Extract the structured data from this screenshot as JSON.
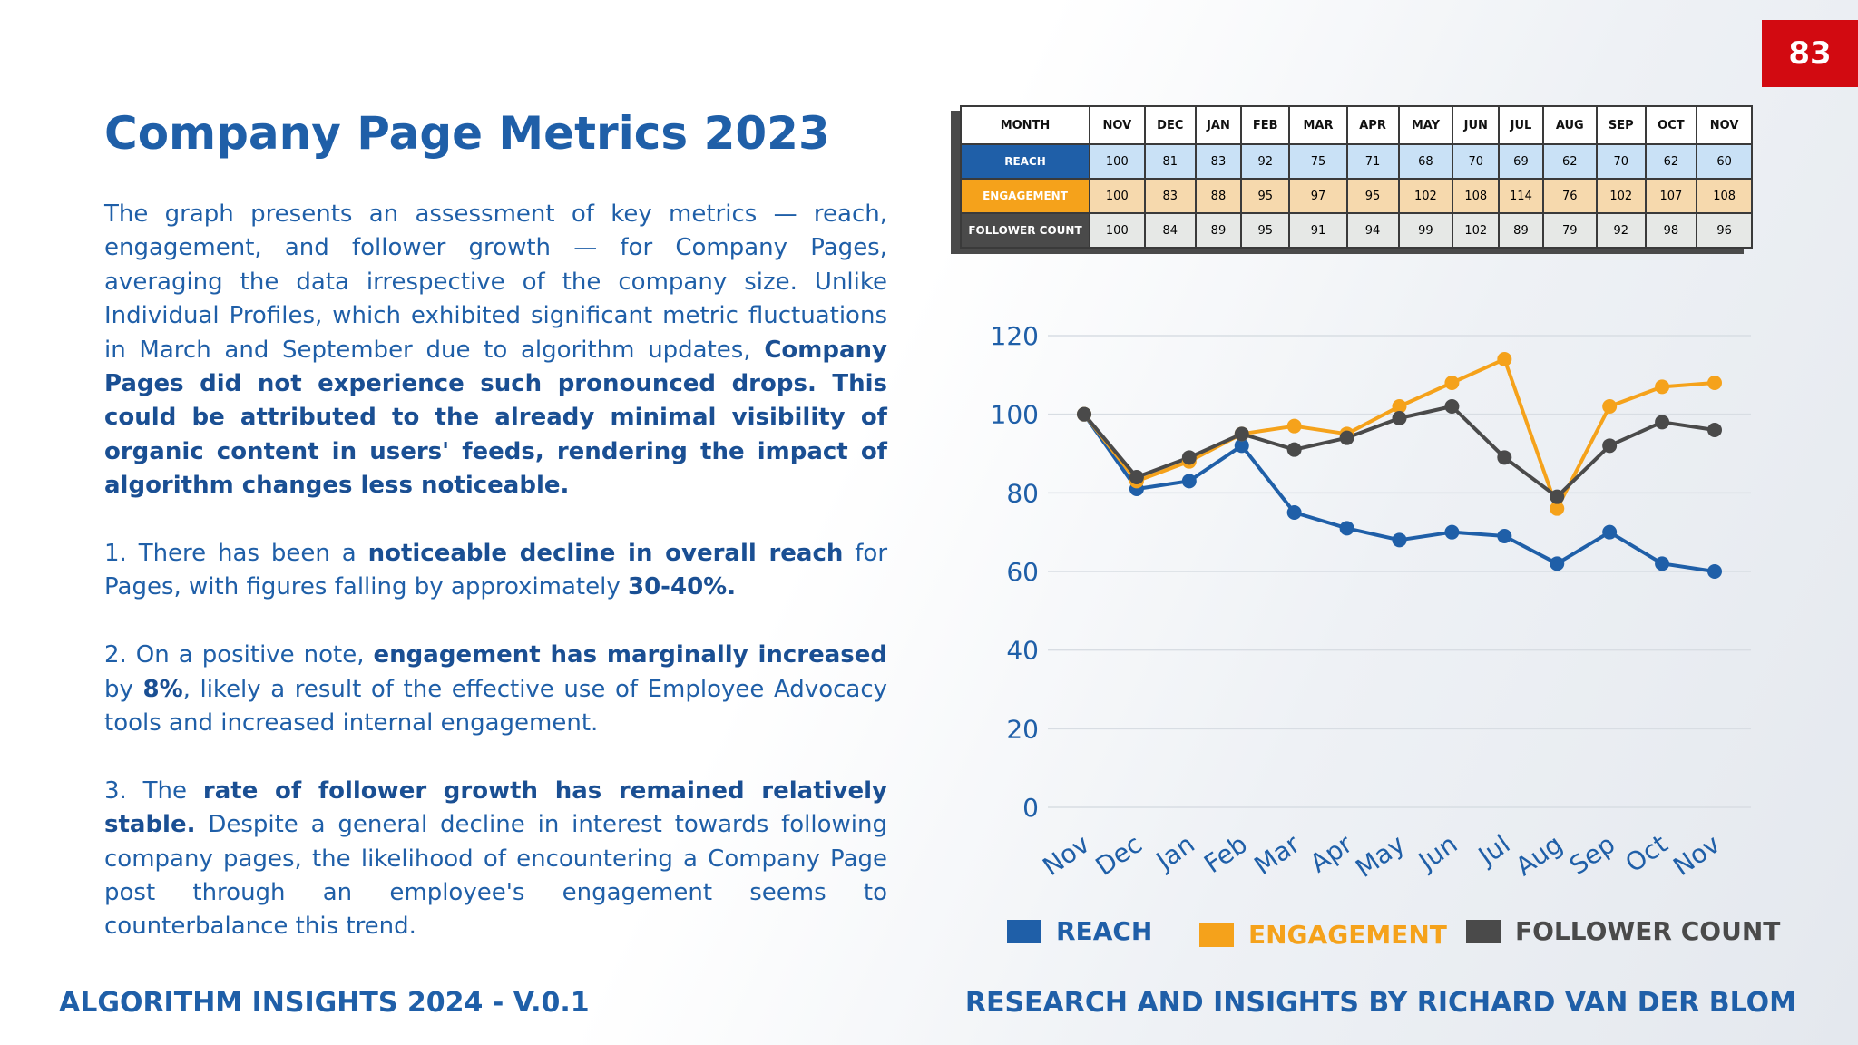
{
  "page_number": "83",
  "title": "Company Page Metrics 2023",
  "paragraphs": [
    [
      {
        "t": "The graph presents an assessment of key metrics — reach, engagement, and follower growth — for Company Pages, averaging the data irrespective of the company size. Unlike Individual Profiles, which exhibited significant metric fluctuations in March and September due to algorithm updates, ",
        "b": false
      },
      {
        "t": "Company Pages did not experience such pronounced drops. This could be attributed to the already minimal visibility of organic content in users' feeds, rendering the impact of algorithm changes less noticeable.",
        "b": true
      }
    ],
    [
      {
        "t": "1. There has been a ",
        "b": false
      },
      {
        "t": "noticeable decline in overall reach",
        "b": true
      },
      {
        "t": " for Pages, with figures falling by approximately ",
        "b": false
      },
      {
        "t": "30-40%.",
        "b": true
      }
    ],
    [
      {
        "t": "2. On a positive note, ",
        "b": false
      },
      {
        "t": "engagement has marginally increased",
        "b": true
      },
      {
        "t": " by ",
        "b": false
      },
      {
        "t": "8%",
        "b": true
      },
      {
        "t": ", likely a result of the effective use of Employee Advocacy tools and increased internal engagement.",
        "b": false
      }
    ],
    [
      {
        "t": "3. The ",
        "b": false
      },
      {
        "t": "rate of follower growth has remained relatively stable.",
        "b": true
      },
      {
        "t": " Despite a general decline in interest towards following company pages, the likelihood of encountering a Company Page post through an employee's engagement seems to counterbalance this trend.",
        "b": false
      }
    ]
  ],
  "footer": {
    "left": "ALGORITHM INSIGHTS 2024 - V.0.1",
    "right": "RESEARCH AND INSIGHTS BY RICHARD VAN DER BLOM"
  },
  "table": {
    "header_label": "MONTH",
    "months": [
      "NOV",
      "DEC",
      "JAN",
      "FEB",
      "MAR",
      "APR",
      "MAY",
      "JUN",
      "JUL",
      "AUG",
      "SEP",
      "OCT",
      "NOV"
    ],
    "rows": [
      {
        "label": "REACH",
        "values": [
          "100",
          "81",
          "83",
          "92",
          "75",
          "71",
          "68",
          "70",
          "69",
          "62",
          "70",
          "62",
          "60"
        ]
      },
      {
        "label": "ENGAGEMENT",
        "values": [
          "100",
          "83",
          "88",
          "95",
          "97",
          "95",
          "102",
          "108",
          "114",
          "76",
          "102",
          "107",
          "108"
        ]
      },
      {
        "label": "FOLLOWER COUNT",
        "values": [
          "100",
          "84",
          "89",
          "95",
          "91",
          "94",
          "99",
          "102",
          "89",
          "79",
          "92",
          "98",
          "96"
        ]
      }
    ]
  },
  "colors": {
    "reach": "#1f5fa8",
    "engagement": "#f5a21b",
    "follower": "#4a4a4a",
    "accent_red": "#d20a11",
    "text_blue": "#1f5fa8"
  },
  "chart_data": {
    "type": "line",
    "categories": [
      "Nov",
      "Dec",
      "Jan",
      "Feb",
      "Mar",
      "Apr",
      "May",
      "Jun",
      "Jul",
      "Aug",
      "Sep",
      "Oct",
      "Nov"
    ],
    "series": [
      {
        "name": "REACH",
        "values": [
          100,
          81,
          83,
          92,
          75,
          71,
          68,
          70,
          69,
          62,
          70,
          62,
          60
        ]
      },
      {
        "name": "ENGAGEMENT",
        "values": [
          100,
          83,
          88,
          95,
          97,
          95,
          102,
          108,
          114,
          76,
          102,
          107,
          108
        ]
      },
      {
        "name": "FOLLOWER COUNT",
        "values": [
          100,
          84,
          89,
          95,
          91,
          94,
          99,
          102,
          89,
          79,
          92,
          98,
          96
        ]
      }
    ],
    "yticks": [
      0,
      20,
      40,
      60,
      80,
      100,
      120
    ],
    "ylim": [
      0,
      120
    ],
    "grid": true,
    "legend": "bottom"
  }
}
